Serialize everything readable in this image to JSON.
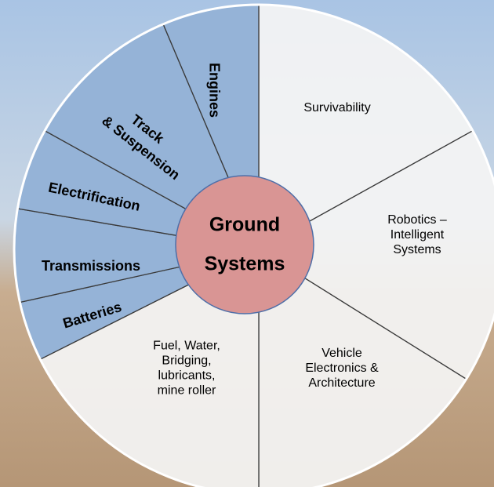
{
  "segments": [
    {
      "label": [
        "Survivability"
      ]
    },
    {
      "label": [
        "Robotics –",
        "Intelligent",
        "Systems"
      ]
    },
    {
      "label": [
        "Vehicle",
        "Electronics &",
        "Architecture"
      ]
    },
    {
      "label": [
        "Fuel, Water,",
        "Bridging,",
        "lubricants,",
        "mine roller"
      ]
    },
    {
      "label": [
        "Batteries"
      ]
    },
    {
      "label": [
        "Transmissions"
      ]
    },
    {
      "label": [
        "Electrification"
      ]
    },
    {
      "label": [
        "Track",
        "& Suspension"
      ]
    },
    {
      "label": [
        "Engines"
      ]
    }
  ],
  "center": {
    "label": [
      "Ground",
      "Systems"
    ]
  }
}
